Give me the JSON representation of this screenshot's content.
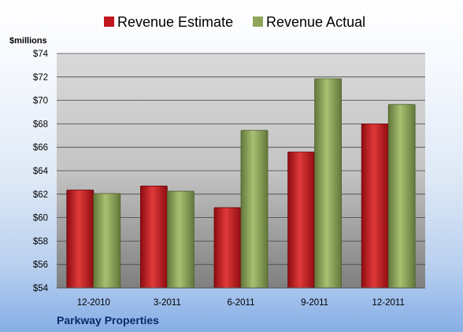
{
  "chart_data": {
    "type": "bar",
    "categories": [
      "12-2010",
      "3-2011",
      "6-2011",
      "9-2011",
      "12-2011"
    ],
    "series": [
      {
        "name": "Revenue Estimate",
        "values": [
          62.35,
          62.7,
          60.85,
          65.6,
          68.0
        ]
      },
      {
        "name": "Revenue Actual",
        "values": [
          62.05,
          62.25,
          67.45,
          71.85,
          69.65
        ]
      }
    ],
    "ylim": [
      54,
      74
    ],
    "yticks": [
      54,
      56,
      58,
      60,
      62,
      64,
      66,
      68,
      70,
      72,
      74
    ],
    "ytick_labels": [
      "$54",
      "$56",
      "$58",
      "$60",
      "$62",
      "$64",
      "$66",
      "$68",
      "$70",
      "$72",
      "$74"
    ],
    "ylabel": "$millions",
    "legend_position": "top",
    "grid": true,
    "footer": "Parkway Properties",
    "colors": {
      "estimate": "#c0161c",
      "actual": "#8ea65a"
    }
  }
}
